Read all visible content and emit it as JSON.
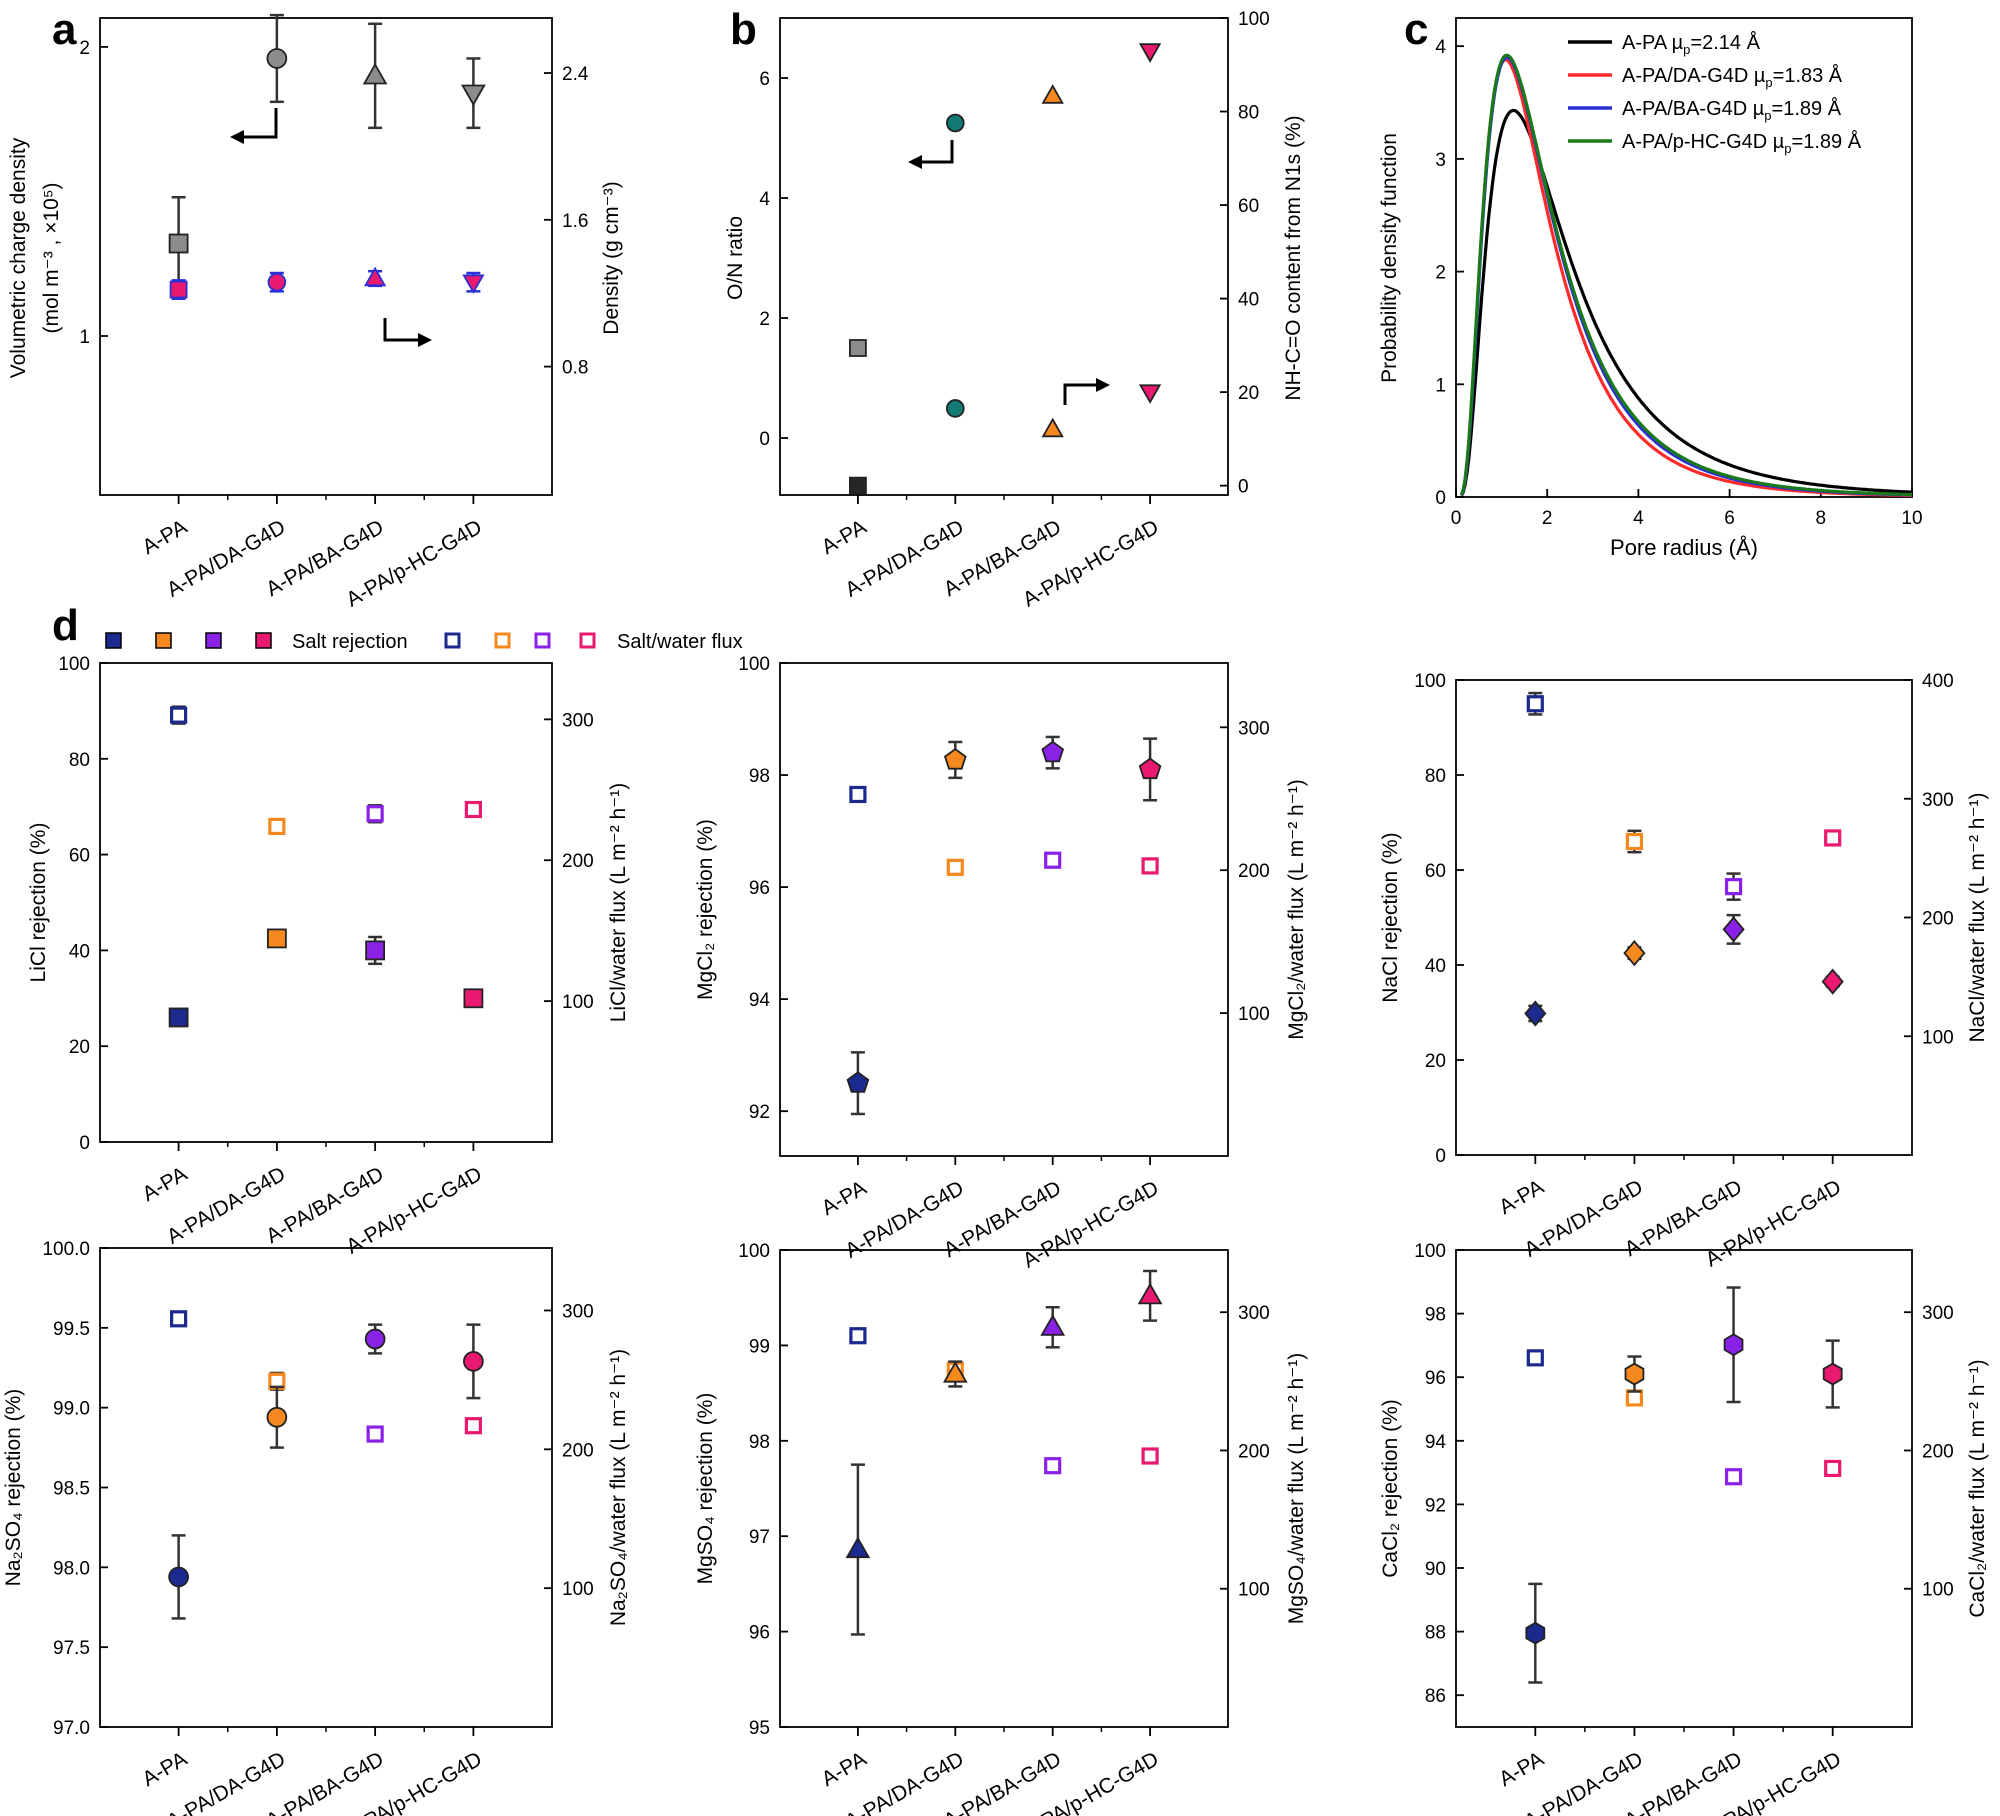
{
  "categories": [
    "A-PA",
    "A-PA/DA-G4D",
    "A-PA/BA-G4D",
    "A-PA/p-HC-G4D"
  ],
  "colors": {
    "gray": "#8c8c8c",
    "teal": "#127a72",
    "orange": "#f5891f",
    "magenta": "#e8196e",
    "navy": "#1b2a8c",
    "purple": "#8a21e6",
    "blue": "#2b2fd6",
    "red": "#ff2a2a",
    "green": "#1a7a1a",
    "black": "#000000"
  },
  "panel_labels": {
    "a": "a",
    "b": "b",
    "c": "c",
    "d": "d"
  },
  "legend_d": {
    "salt_rejection": "Salt rejection",
    "flux": "Salt/water flux"
  },
  "chart_data": [
    {
      "id": "a",
      "type": "scatter",
      "title": "",
      "ylabel_lines": [
        "Volumetric charge density",
        "(mol m⁻³ , ×10⁵)"
      ],
      "y2label": "Density (g cm⁻³)",
      "ylim": [
        0.45,
        2.1
      ],
      "yticks": [
        1,
        2
      ],
      "y2lim": [
        0.1,
        2.7
      ],
      "y2ticks": [
        0.8,
        1.6,
        2.4
      ],
      "series": [
        {
          "name": "Volumetric charge density",
          "axis": "left",
          "markers": [
            "square",
            "circle",
            "triangle-up",
            "triangle-down"
          ],
          "fill": "#8c8c8c",
          "values": [
            1.32,
            1.96,
            1.9,
            1.84
          ],
          "err": [
            0.16,
            0.15,
            0.18,
            0.12
          ]
        },
        {
          "name": "Density",
          "axis": "right",
          "markers": [
            "square",
            "circle",
            "triangle-up",
            "triangle-down"
          ],
          "fill": "#e8196e",
          "edge": "#2b2fd6",
          "values": [
            1.22,
            1.26,
            1.28,
            1.26
          ],
          "err": [
            0.05,
            0.05,
            0.04,
            0.05
          ]
        }
      ]
    },
    {
      "id": "b",
      "type": "scatter",
      "ylabel": "O/N ratio",
      "y2label": "NH-C=O content from N1s (%)",
      "ylim": [
        -0.95,
        7.0
      ],
      "yticks": [
        0,
        2,
        4,
        6
      ],
      "y2lim": [
        -2,
        100
      ],
      "y2ticks": [
        0,
        20,
        40,
        60,
        80,
        100
      ],
      "series": [
        {
          "name": "O/N ratio",
          "axis": "left",
          "markers": [
            "square",
            "circle",
            "triangle-up",
            "triangle-down"
          ],
          "fills": [
            "#8c8c8c",
            "#127a72",
            "#f5891f",
            "#e8196e"
          ],
          "values": [
            1.5,
            5.25,
            5.7,
            6.45
          ]
        },
        {
          "name": "NH-C=O content",
          "axis": "right",
          "markers": [
            "square",
            "circle",
            "triangle-up",
            "triangle-down"
          ],
          "fills": [
            "#262626",
            "#127a72",
            "#f5891f",
            "#e8196e"
          ],
          "values": [
            0,
            16.5,
            12,
            20
          ]
        }
      ]
    },
    {
      "id": "c",
      "type": "line",
      "xlabel": "Pore radius (Å)",
      "ylabel": "Probability density function",
      "xlim": [
        0,
        10
      ],
      "xticks": [
        0,
        2,
        4,
        6,
        8,
        10
      ],
      "ylim": [
        0,
        4.25
      ],
      "yticks": [
        0,
        1,
        2,
        3,
        4
      ],
      "series": [
        {
          "name": "A-PA",
          "mu_text": "=2.14 Å",
          "color": "#000000",
          "mu": 2.14,
          "sigma": 0.55
        },
        {
          "name": "A-PA/DA-G4D",
          "mu_text": "=1.83 Å",
          "color": "#ff2a2a",
          "mu": 1.83,
          "sigma": 0.48
        },
        {
          "name": "A-PA/BA-G4D",
          "mu_text": "=1.89 Å",
          "color": "#2b2fd6",
          "mu": 1.89,
          "sigma": 0.5
        },
        {
          "name": "A-PA/p-HC-G4D",
          "mu_text": "=1.89 Å",
          "color": "#1a7a1a",
          "mu": 1.89,
          "sigma": 0.5
        }
      ]
    },
    {
      "id": "d1",
      "type": "scatter",
      "marker": "square",
      "ylabel": "LiCl rejection (%)",
      "y2label": "LiCl/water flux (L m⁻² h⁻¹)",
      "ylim": [
        0,
        100
      ],
      "yticks": [
        0,
        20,
        40,
        60,
        80,
        100
      ],
      "y2lim": [
        0,
        340
      ],
      "y2ticks": [
        100,
        200,
        300
      ],
      "rejection": [
        26,
        42.5,
        40,
        30
      ],
      "rejection_err": [
        1.2,
        1.2,
        2.8,
        1.0
      ],
      "flux": [
        303,
        224,
        233,
        236
      ],
      "flux_err": [
        6,
        5,
        6,
        3
      ]
    },
    {
      "id": "d2",
      "type": "scatter",
      "marker": "pentagon",
      "ylabel": "MgCl₂ rejection (%)",
      "y2label": "MgCl₂/water flux (L m⁻² h⁻¹)",
      "ylim": [
        91.2,
        100
      ],
      "yticks": [
        92,
        94,
        96,
        98,
        100
      ],
      "y2lim": [
        0,
        345
      ],
      "y2ticks": [
        100,
        200,
        300
      ],
      "rejection": [
        92.5,
        98.27,
        98.4,
        98.1
      ],
      "rejection_err": [
        0.55,
        0.32,
        0.28,
        0.55
      ],
      "flux": [
        253,
        202,
        207,
        203
      ],
      "flux_err": [
        3,
        2,
        2,
        2
      ]
    },
    {
      "id": "d3",
      "type": "scatter",
      "marker": "diamond",
      "ylabel": "NaCl rejection (%)",
      "y2label": "NaCl/water flux (L m⁻² h⁻¹)",
      "ylim": [
        0,
        100
      ],
      "yticks": [
        0,
        20,
        40,
        60,
        80,
        100
      ],
      "y2lim": [
        0,
        400
      ],
      "y2ticks": [
        100,
        200,
        300,
        400
      ],
      "rejection": [
        29.8,
        42.5,
        47.5,
        36.5
      ],
      "rejection_err": [
        1.6,
        1.2,
        3.0,
        1.0
      ],
      "flux": [
        380,
        264,
        226,
        267
      ],
      "flux_err": [
        9,
        9,
        11,
        5
      ]
    },
    {
      "id": "d4",
      "type": "scatter",
      "marker": "circle",
      "ylabel": "Na₂SO₄ rejection (%)",
      "y2label": "Na₂SO₄/water flux (L m⁻² h⁻¹)",
      "ylim": [
        97.0,
        100.0
      ],
      "yticks": [
        97.0,
        97.5,
        98.0,
        98.5,
        99.0,
        99.5,
        100.0
      ],
      "y2lim": [
        0,
        345
      ],
      "y2ticks": [
        100,
        200,
        300
      ],
      "rejection": [
        97.94,
        98.94,
        99.43,
        99.29
      ],
      "rejection_err": [
        0.26,
        0.19,
        0.09,
        0.23
      ],
      "flux": [
        294,
        249,
        211,
        217
      ],
      "flux_err": [
        3,
        6,
        3,
        4
      ]
    },
    {
      "id": "d5",
      "type": "scatter",
      "marker": "triangle-up",
      "ylabel": "MgSO₄ rejection (%)",
      "y2label": "MgSO₄/water flux (L m⁻² h⁻¹)",
      "ylim": [
        95,
        100
      ],
      "yticks": [
        95,
        96,
        97,
        98,
        99,
        100
      ],
      "y2lim": [
        0,
        345
      ],
      "y2ticks": [
        100,
        200,
        300
      ],
      "rejection": [
        96.86,
        98.7,
        99.19,
        99.52
      ],
      "rejection_err": [
        0.89,
        0.13,
        0.21,
        0.26
      ],
      "flux": [
        283,
        258,
        189,
        196
      ],
      "flux_err": [
        5,
        5,
        3,
        4
      ]
    },
    {
      "id": "d6",
      "type": "scatter",
      "marker": "hexagon",
      "ylabel": "CaCl₂ rejection (%)",
      "y2label": "CaCl₂/water flux (L m⁻² h⁻¹)",
      "ylim": [
        85,
        100
      ],
      "yticks": [
        86,
        88,
        90,
        92,
        94,
        96,
        98,
        100
      ],
      "y2lim": [
        0,
        345
      ],
      "y2ticks": [
        100,
        200,
        300
      ],
      "rejection": [
        87.95,
        96.1,
        97.02,
        96.1
      ],
      "rejection_err": [
        1.55,
        0.55,
        1.8,
        1.05
      ],
      "flux": [
        267,
        238,
        181,
        187
      ],
      "flux_err": [
        4,
        4,
        4,
        3
      ]
    }
  ]
}
